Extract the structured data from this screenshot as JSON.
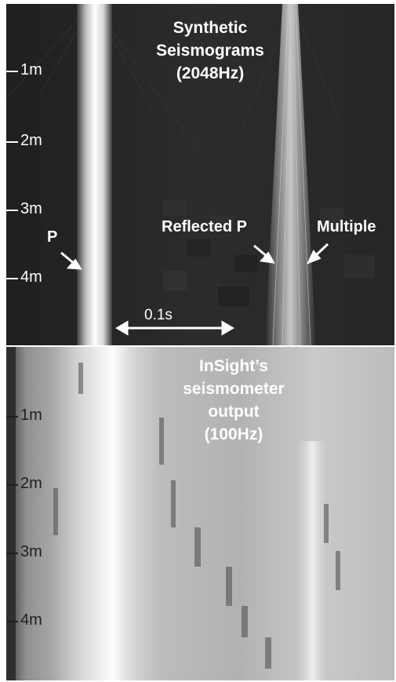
{
  "top_panel": {
    "title_lines": [
      "Synthetic",
      "Seismograms",
      "(2048Hz)"
    ],
    "depth_ticks": [
      "1m",
      "2m",
      "3m",
      "4m"
    ],
    "annotations": {
      "p_wave": "P",
      "reflected": "Reflected P",
      "multiple": "Multiple"
    },
    "scale_bar_label": "0.1s"
  },
  "bottom_panel": {
    "title_lines": [
      "InSight’s",
      "seismometer",
      "output",
      "(100Hz)"
    ],
    "depth_ticks": [
      "1m",
      "2m",
      "3m",
      "4m"
    ]
  },
  "colors": {
    "top_background": "#2a2a2a",
    "bottom_background": "#b9b9b9",
    "annotation_text": "#ffffff"
  }
}
